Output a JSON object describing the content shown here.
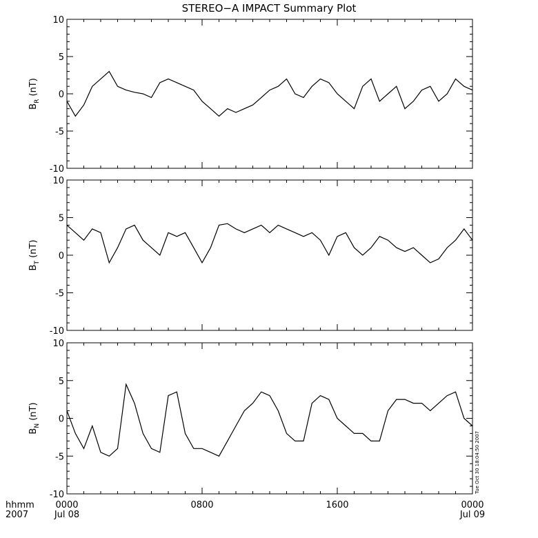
{
  "chart_data": {
    "type": "line",
    "title": "STEREO−A IMPACT Summary Plot",
    "timestamp": "Tue Oct 30 18:04:50 2007",
    "x_axis": {
      "unit_label": "hhmm",
      "year_label": "2007",
      "range_hours": [
        0,
        24
      ],
      "ticks": [
        {
          "hours": 0,
          "label": "0000",
          "date": "Jul 08"
        },
        {
          "hours": 8,
          "label": "0800",
          "date": ""
        },
        {
          "hours": 16,
          "label": "1600",
          "date": ""
        },
        {
          "hours": 24,
          "label": "0000",
          "date": "Jul 09"
        }
      ],
      "minor_step_hours": 1
    },
    "panels": [
      {
        "ylabel_main": "B",
        "ylabel_sub": "R",
        "ylabel_unit": " (nT)",
        "ylim": [
          -10,
          10
        ],
        "yticks": [
          10,
          5,
          0,
          -5,
          -10
        ],
        "x": [
          0,
          0.5,
          1,
          1.5,
          2,
          2.5,
          3,
          3.5,
          4,
          4.5,
          5,
          5.5,
          6,
          6.5,
          7,
          7.5,
          8,
          8.5,
          9,
          9.5,
          10,
          10.5,
          11,
          11.5,
          12,
          12.5,
          13,
          13.5,
          14,
          14.5,
          15,
          15.5,
          16,
          16.5,
          17,
          17.5,
          18,
          18.5,
          19,
          19.5,
          20,
          20.5,
          21,
          21.5,
          22,
          22.5,
          23,
          23.5,
          24
        ],
        "values": [
          -1,
          -3,
          -1.5,
          1,
          2,
          3,
          1,
          0.5,
          0.2,
          0,
          -0.5,
          1.5,
          2,
          1.5,
          1,
          0.5,
          -1,
          -2,
          -3,
          -2,
          -2.5,
          -2,
          -1.5,
          -0.5,
          0.5,
          1,
          2,
          0,
          -0.5,
          1,
          2,
          1.5,
          0,
          -1,
          -2,
          1,
          2,
          -1,
          0,
          1,
          -2,
          -1,
          0.5,
          1,
          -1,
          0,
          2,
          1,
          0.5
        ]
      },
      {
        "ylabel_main": "B",
        "ylabel_sub": "T",
        "ylabel_unit": " (nT)",
        "ylim": [
          -10,
          10
        ],
        "yticks": [
          10,
          5,
          0,
          -5,
          -10
        ],
        "x": [
          0,
          0.5,
          1,
          1.5,
          2,
          2.5,
          3,
          3.5,
          4,
          4.5,
          5,
          5.5,
          6,
          6.5,
          7,
          7.5,
          8,
          8.5,
          9,
          9.5,
          10,
          10.5,
          11,
          11.5,
          12,
          12.5,
          13,
          13.5,
          14,
          14.5,
          15,
          15.5,
          16,
          16.5,
          17,
          17.5,
          18,
          18.5,
          19,
          19.5,
          20,
          20.5,
          21,
          21.5,
          22,
          22.5,
          23,
          23.5,
          24
        ],
        "values": [
          4,
          3,
          2,
          3.5,
          3,
          -1,
          1,
          3.5,
          4,
          2,
          1,
          0,
          3,
          2.5,
          3,
          1,
          -1,
          1,
          4,
          4.2,
          3.5,
          3,
          3.5,
          4,
          3,
          4,
          3.5,
          3,
          2.5,
          3,
          2,
          0,
          2.5,
          3,
          1,
          0,
          1,
          2.5,
          2,
          1,
          0.5,
          1,
          0,
          -1,
          -0.5,
          1,
          2,
          3.5,
          2
        ]
      },
      {
        "ylabel_main": "B",
        "ylabel_sub": "N",
        "ylabel_unit": " (nT)",
        "ylim": [
          -10,
          10
        ],
        "yticks": [
          10,
          5,
          0,
          -5,
          -10
        ],
        "x": [
          0,
          0.5,
          1,
          1.5,
          2,
          2.5,
          3,
          3.5,
          4,
          4.5,
          5,
          5.5,
          6,
          6.5,
          7,
          7.5,
          8,
          8.5,
          9,
          9.5,
          10,
          10.5,
          11,
          11.5,
          12,
          12.5,
          13,
          13.5,
          14,
          14.5,
          15,
          15.5,
          16,
          16.5,
          17,
          17.5,
          18,
          18.5,
          19,
          19.5,
          20,
          20.5,
          21,
          21.5,
          22,
          22.5,
          23,
          23.5,
          24
        ],
        "values": [
          1,
          -2,
          -4,
          -1,
          -4.5,
          -5,
          -4,
          4.5,
          2,
          -2,
          -4,
          -4.5,
          3,
          3.5,
          -2,
          -4,
          -4,
          -4.5,
          -5,
          -3,
          -1,
          1,
          2,
          3.5,
          3,
          1,
          -2,
          -3,
          -3,
          2,
          3,
          2.5,
          0,
          -1,
          -2,
          -2,
          -3,
          -3,
          1,
          2.5,
          2.5,
          2,
          2,
          1,
          2,
          3,
          3.5,
          0,
          -1
        ]
      }
    ]
  }
}
